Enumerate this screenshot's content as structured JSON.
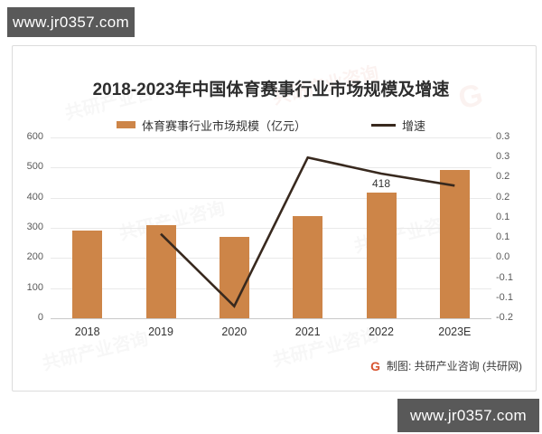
{
  "banners": {
    "top": "www.jr0357.com",
    "bottom": "www.jr0357.com"
  },
  "chart": {
    "source_logo": "G",
    "source": "制图: 共研产业咨询 (共研网)",
    "watermark": "共研产业咨询"
  },
  "chart_data": {
    "type": "combo-bar-line",
    "title": "2018-2023年中国体育赛事行业市场规模及增速",
    "categories": [
      "2018",
      "2019",
      "2020",
      "2021",
      "2022",
      "2023E"
    ],
    "series": [
      {
        "name": "体育赛事行业市场规模（亿元）",
        "type": "bar",
        "axis": "left",
        "color": "#cd8548",
        "values": [
          290,
          310,
          270,
          340,
          418,
          493
        ],
        "labels": [
          null,
          null,
          null,
          null,
          "418",
          null
        ]
      },
      {
        "name": "增速",
        "type": "line",
        "axis": "right",
        "color": "#38291e",
        "values": [
          null,
          0.06,
          -0.12,
          0.25,
          0.21,
          0.18
        ]
      }
    ],
    "left_axis": {
      "min": 0,
      "max": 600,
      "ticks": [
        "600",
        "500",
        "400",
        "300",
        "200",
        "100",
        "0"
      ]
    },
    "right_axis": {
      "min": -0.15,
      "max": 0.3,
      "ticks": [
        "0.3",
        "0.3",
        "0.2",
        "0.2",
        "0.1",
        "0.1",
        "0.0",
        "-0.1",
        "-0.1",
        "-0.2"
      ]
    },
    "grid": true,
    "legend_position": "top-center"
  }
}
